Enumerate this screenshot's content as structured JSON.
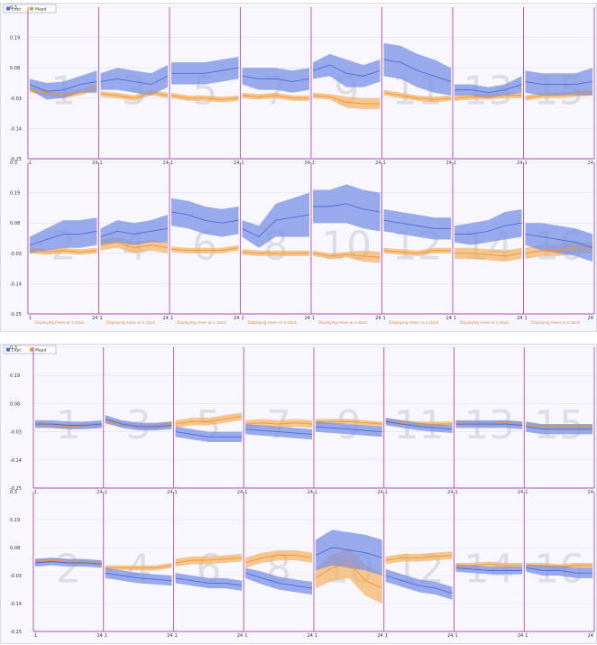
{
  "colors": {
    "series_a": "#4a6ad8",
    "series_a_band": "#7a90e6",
    "series_b": "#f0962e",
    "series_b_band": "#f4b060",
    "divider": "#b44ab8",
    "grid": "#e2e2ee",
    "zero": "#9aa0c0",
    "bignum": "#c8c8d0"
  },
  "chart_data": [
    {
      "type": "line",
      "legend": {
        "placement": "top-left",
        "entries": [
          "Expt",
          "Mapd"
        ]
      },
      "ylim": [
        -0.25,
        0.3
      ],
      "y_tick_labels": [
        "0.3",
        "0.19",
        "0.08",
        "-0.03",
        "-0.14",
        "-0.25"
      ],
      "y_tick_values": [
        0.3,
        0.19,
        0.08,
        -0.03,
        -0.14,
        -0.25
      ],
      "x_tick_labels": [
        "1",
        "24"
      ],
      "caption": "Displaying mean or a stack",
      "panels": [
        {
          "label": "1",
          "a": [
            0.02,
            -0.005,
            0.0,
            0.02,
            0.03
          ],
          "aw": [
            0.02,
            0.03,
            0.03,
            0.03,
            0.04
          ],
          "b": [
            -0.0,
            -0.01,
            -0.02,
            -0.01,
            0.01
          ],
          "bw": [
            0.01,
            0.01,
            0.01,
            0.01,
            0.01
          ]
        },
        {
          "label": "3",
          "a": [
            0.03,
            0.04,
            0.03,
            0.02,
            0.05
          ],
          "aw": [
            0.03,
            0.04,
            0.04,
            0.04,
            0.04
          ],
          "b": [
            -0.015,
            -0.02,
            -0.03,
            -0.01,
            -0.02
          ],
          "bw": [
            0.01,
            0.01,
            0.01,
            0.01,
            0.01
          ]
        },
        {
          "label": "5",
          "a": [
            0.06,
            0.06,
            0.06,
            0.07,
            0.08
          ],
          "aw": [
            0.04,
            0.04,
            0.04,
            0.04,
            0.04
          ],
          "b": [
            -0.02,
            -0.03,
            -0.03,
            -0.035,
            -0.03
          ],
          "bw": [
            0.01,
            0.01,
            0.01,
            0.01,
            0.01
          ]
        },
        {
          "label": "7",
          "a": [
            0.05,
            0.04,
            0.04,
            0.03,
            0.04
          ],
          "aw": [
            0.03,
            0.04,
            0.04,
            0.04,
            0.04
          ],
          "b": [
            -0.02,
            -0.025,
            -0.02,
            -0.03,
            -0.03
          ],
          "bw": [
            0.01,
            0.01,
            0.01,
            0.01,
            0.01
          ]
        },
        {
          "label": "9",
          "a": [
            0.07,
            0.09,
            0.06,
            0.05,
            0.07
          ],
          "aw": [
            0.03,
            0.04,
            0.05,
            0.04,
            0.04
          ],
          "b": [
            -0.02,
            -0.025,
            -0.045,
            -0.05,
            -0.05
          ],
          "bw": [
            0.01,
            0.01,
            0.02,
            0.02,
            0.02
          ]
        },
        {
          "label": "11",
          "a": [
            0.11,
            0.1,
            0.07,
            0.05,
            0.03
          ],
          "aw": [
            0.06,
            0.06,
            0.06,
            0.06,
            0.05
          ],
          "b": [
            -0.01,
            -0.02,
            -0.03,
            -0.035,
            -0.03
          ],
          "bw": [
            0.01,
            0.01,
            0.01,
            0.01,
            0.01
          ]
        },
        {
          "label": "13",
          "a": [
            0.0,
            0.0,
            -0.01,
            0.0,
            0.02
          ],
          "aw": [
            0.02,
            0.02,
            0.02,
            0.02,
            0.03
          ],
          "b": [
            -0.03,
            -0.025,
            -0.025,
            -0.02,
            -0.02
          ],
          "bw": [
            0.01,
            0.01,
            0.01,
            0.01,
            0.01
          ]
        },
        {
          "label": "15",
          "a": [
            0.03,
            0.02,
            0.02,
            0.02,
            0.03
          ],
          "aw": [
            0.04,
            0.04,
            0.04,
            0.04,
            0.05
          ],
          "b": [
            -0.03,
            -0.02,
            -0.02,
            -0.015,
            -0.01
          ],
          "bw": [
            0.01,
            0.01,
            0.01,
            0.01,
            0.01
          ]
        },
        {
          "label": "2",
          "a": [
            0.0,
            0.02,
            0.04,
            0.04,
            0.05
          ],
          "aw": [
            0.03,
            0.04,
            0.05,
            0.05,
            0.05
          ],
          "b": [
            -0.02,
            -0.025,
            -0.02,
            -0.025,
            -0.02
          ],
          "bw": [
            0.01,
            0.01,
            0.01,
            0.01,
            0.01
          ]
        },
        {
          "label": "4",
          "a": [
            0.03,
            0.05,
            0.04,
            0.05,
            0.06
          ],
          "aw": [
            0.03,
            0.04,
            0.04,
            0.04,
            0.05
          ],
          "b": [
            0.0,
            0.01,
            -0.01,
            -0.0,
            -0.01
          ],
          "bw": [
            0.02,
            0.02,
            0.02,
            0.02,
            0.02
          ]
        },
        {
          "label": "6",
          "a": [
            0.12,
            0.11,
            0.09,
            0.08,
            0.09
          ],
          "aw": [
            0.05,
            0.05,
            0.05,
            0.05,
            0.05
          ],
          "b": [
            -0.015,
            -0.02,
            -0.02,
            -0.02,
            -0.01
          ],
          "bw": [
            0.01,
            0.01,
            0.01,
            0.01,
            0.01
          ]
        },
        {
          "label": "8",
          "a": [
            0.06,
            0.03,
            0.09,
            0.1,
            0.11
          ],
          "aw": [
            0.03,
            0.04,
            0.06,
            0.07,
            0.08
          ],
          "b": [
            -0.025,
            -0.03,
            -0.03,
            -0.03,
            -0.03
          ],
          "bw": [
            0.01,
            0.01,
            0.01,
            0.01,
            0.01
          ]
        },
        {
          "label": "10",
          "a": [
            0.14,
            0.14,
            0.15,
            0.13,
            0.12
          ],
          "aw": [
            0.06,
            0.06,
            0.07,
            0.07,
            0.07
          ],
          "b": [
            -0.03,
            -0.04,
            -0.035,
            -0.04,
            -0.045
          ],
          "bw": [
            0.01,
            0.01,
            0.01,
            0.02,
            0.02
          ]
        },
        {
          "label": "12",
          "a": [
            0.09,
            0.08,
            0.07,
            0.06,
            0.06
          ],
          "aw": [
            0.04,
            0.04,
            0.04,
            0.04,
            0.04
          ],
          "b": [
            -0.02,
            -0.025,
            -0.03,
            -0.02,
            -0.02
          ],
          "bw": [
            0.01,
            0.01,
            0.01,
            0.01,
            0.01
          ]
        },
        {
          "label": "14",
          "a": [
            0.04,
            0.04,
            0.05,
            0.07,
            0.08
          ],
          "aw": [
            0.03,
            0.04,
            0.04,
            0.05,
            0.05
          ],
          "b": [
            -0.03,
            -0.03,
            -0.035,
            -0.04,
            -0.03
          ],
          "bw": [
            0.02,
            0.02,
            0.02,
            0.02,
            0.02
          ]
        },
        {
          "label": "16",
          "a": [
            0.04,
            0.03,
            0.02,
            0.01,
            -0.01
          ],
          "aw": [
            0.04,
            0.05,
            0.05,
            0.05,
            0.05
          ],
          "b": [
            -0.03,
            -0.02,
            -0.02,
            -0.01,
            -0.01
          ],
          "bw": [
            0.02,
            0.02,
            0.02,
            0.02,
            0.02
          ]
        }
      ]
    },
    {
      "type": "line",
      "legend": {
        "placement": "top-left",
        "entries": [
          "Expt",
          "Mapd"
        ]
      },
      "ylim": [
        -0.25,
        0.3
      ],
      "y_tick_labels": [
        "0.3",
        "0.19",
        "0.08",
        "-0.03",
        "-0.14",
        "-0.25"
      ],
      "y_tick_values": [
        0.3,
        0.19,
        0.08,
        -0.03,
        -0.14,
        -0.25
      ],
      "x_tick_labels": [
        "1",
        "24"
      ],
      "panels": [
        {
          "label": "1",
          "a": [
            0.0,
            0.0,
            -0.005,
            -0.005,
            0.0
          ],
          "aw": [
            0.015,
            0.015,
            0.015,
            0.015,
            0.015
          ],
          "b": [
            0.0,
            -0.005,
            -0.01,
            -0.005,
            -0.005
          ],
          "bw": [
            0.01,
            0.01,
            0.01,
            0.01,
            0.01
          ]
        },
        {
          "label": "3",
          "a": [
            0.02,
            0.0,
            -0.01,
            -0.01,
            -0.005
          ],
          "aw": [
            0.015,
            0.015,
            0.015,
            0.015,
            0.015
          ],
          "b": [
            0.01,
            0.0,
            -0.01,
            -0.01,
            0.0
          ],
          "bw": [
            0.01,
            0.01,
            0.01,
            0.01,
            0.01
          ]
        },
        {
          "label": "5",
          "a": [
            -0.03,
            -0.04,
            -0.05,
            -0.05,
            -0.05
          ],
          "aw": [
            0.02,
            0.02,
            0.02,
            0.02,
            0.02
          ],
          "b": [
            0.0,
            0.01,
            0.01,
            0.02,
            0.03
          ],
          "bw": [
            0.015,
            0.015,
            0.015,
            0.015,
            0.015
          ]
        },
        {
          "label": "7",
          "a": [
            -0.02,
            -0.025,
            -0.03,
            -0.035,
            -0.04
          ],
          "aw": [
            0.02,
            0.02,
            0.02,
            0.02,
            0.02
          ],
          "b": [
            0.0,
            0.005,
            0.0,
            0.005,
            0.0
          ],
          "bw": [
            0.015,
            0.015,
            0.015,
            0.015,
            0.015
          ]
        },
        {
          "label": "9",
          "a": [
            -0.01,
            -0.015,
            -0.02,
            -0.025,
            -0.03
          ],
          "aw": [
            0.02,
            0.02,
            0.02,
            0.02,
            0.02
          ],
          "b": [
            0.01,
            0.01,
            0.01,
            0.005,
            0.0
          ],
          "bw": [
            0.01,
            0.01,
            0.01,
            0.01,
            0.01
          ]
        },
        {
          "label": "11",
          "a": [
            0.01,
            0.0,
            -0.01,
            -0.015,
            -0.02
          ],
          "aw": [
            0.015,
            0.015,
            0.015,
            0.015,
            0.015
          ],
          "b": [
            0.01,
            0.005,
            0.0,
            0.0,
            0.0
          ],
          "bw": [
            0.01,
            0.01,
            0.01,
            0.01,
            0.01
          ]
        },
        {
          "label": "13",
          "a": [
            0.0,
            0.0,
            0.0,
            0.0,
            -0.005
          ],
          "aw": [
            0.015,
            0.015,
            0.015,
            0.015,
            0.015
          ],
          "b": [
            0.005,
            0.0,
            0.0,
            0.005,
            0.0
          ],
          "bw": [
            0.01,
            0.01,
            0.01,
            0.01,
            0.01
          ]
        },
        {
          "label": "15",
          "a": [
            -0.01,
            -0.02,
            -0.02,
            -0.02,
            -0.02
          ],
          "aw": [
            0.02,
            0.02,
            0.02,
            0.02,
            0.02
          ],
          "b": [
            -0.005,
            -0.01,
            -0.01,
            -0.01,
            -0.01
          ],
          "bw": [
            0.01,
            0.01,
            0.01,
            0.01,
            0.01
          ]
        },
        {
          "label": "2",
          "a": [
            0.02,
            0.025,
            0.02,
            0.02,
            0.015
          ],
          "aw": [
            0.015,
            0.015,
            0.015,
            0.015,
            0.015
          ],
          "b": [
            0.025,
            0.03,
            0.025,
            0.02,
            0.02
          ],
          "bw": [
            0.01,
            0.01,
            0.01,
            0.01,
            0.01
          ]
        },
        {
          "label": "4",
          "a": [
            -0.02,
            -0.03,
            -0.04,
            -0.045,
            -0.05
          ],
          "aw": [
            0.02,
            0.02,
            0.02,
            0.02,
            0.02
          ],
          "b": [
            0.0,
            0.0,
            0.0,
            0.0,
            0.01
          ],
          "bw": [
            0.01,
            0.01,
            0.01,
            0.01,
            0.01
          ]
        },
        {
          "label": "6",
          "a": [
            -0.04,
            -0.05,
            -0.06,
            -0.06,
            -0.07
          ],
          "aw": [
            0.02,
            0.02,
            0.02,
            0.02,
            0.02
          ],
          "b": [
            0.02,
            0.03,
            0.03,
            0.035,
            0.04
          ],
          "bw": [
            0.015,
            0.015,
            0.015,
            0.015,
            0.015
          ]
        },
        {
          "label": "8",
          "a": [
            -0.02,
            -0.04,
            -0.06,
            -0.07,
            -0.08
          ],
          "aw": [
            0.02,
            0.025,
            0.025,
            0.025,
            0.025
          ],
          "b": [
            0.02,
            0.04,
            0.05,
            0.05,
            0.04
          ],
          "bw": [
            0.02,
            0.02,
            0.02,
            0.02,
            0.02
          ]
        },
        {
          "label": "10",
          "a": [
            0.05,
            0.08,
            0.07,
            0.06,
            0.04
          ],
          "aw": [
            0.06,
            0.07,
            0.07,
            0.07,
            0.07
          ],
          "b": [
            -0.04,
            0.0,
            0.02,
            -0.05,
            -0.08
          ],
          "bw": [
            0.04,
            0.05,
            0.06,
            0.06,
            0.06
          ]
        },
        {
          "label": "12",
          "a": [
            -0.03,
            -0.05,
            -0.07,
            -0.08,
            -0.1
          ],
          "aw": [
            0.025,
            0.025,
            0.025,
            0.025,
            0.025
          ],
          "b": [
            0.03,
            0.04,
            0.04,
            0.045,
            0.05
          ],
          "bw": [
            0.015,
            0.015,
            0.015,
            0.015,
            0.015
          ]
        },
        {
          "label": "14",
          "a": [
            0.0,
            -0.005,
            -0.01,
            -0.01,
            -0.01
          ],
          "aw": [
            0.015,
            0.015,
            0.015,
            0.015,
            0.015
          ],
          "b": [
            0.01,
            0.01,
            0.015,
            0.01,
            0.01
          ],
          "bw": [
            0.01,
            0.01,
            0.01,
            0.01,
            0.01
          ]
        },
        {
          "label": "16",
          "a": [
            0.0,
            -0.01,
            -0.01,
            -0.02,
            -0.02
          ],
          "aw": [
            0.015,
            0.02,
            0.02,
            0.02,
            0.02
          ],
          "b": [
            0.01,
            0.01,
            0.005,
            0.01,
            0.01
          ],
          "bw": [
            0.01,
            0.01,
            0.01,
            0.01,
            0.01
          ]
        }
      ]
    }
  ]
}
